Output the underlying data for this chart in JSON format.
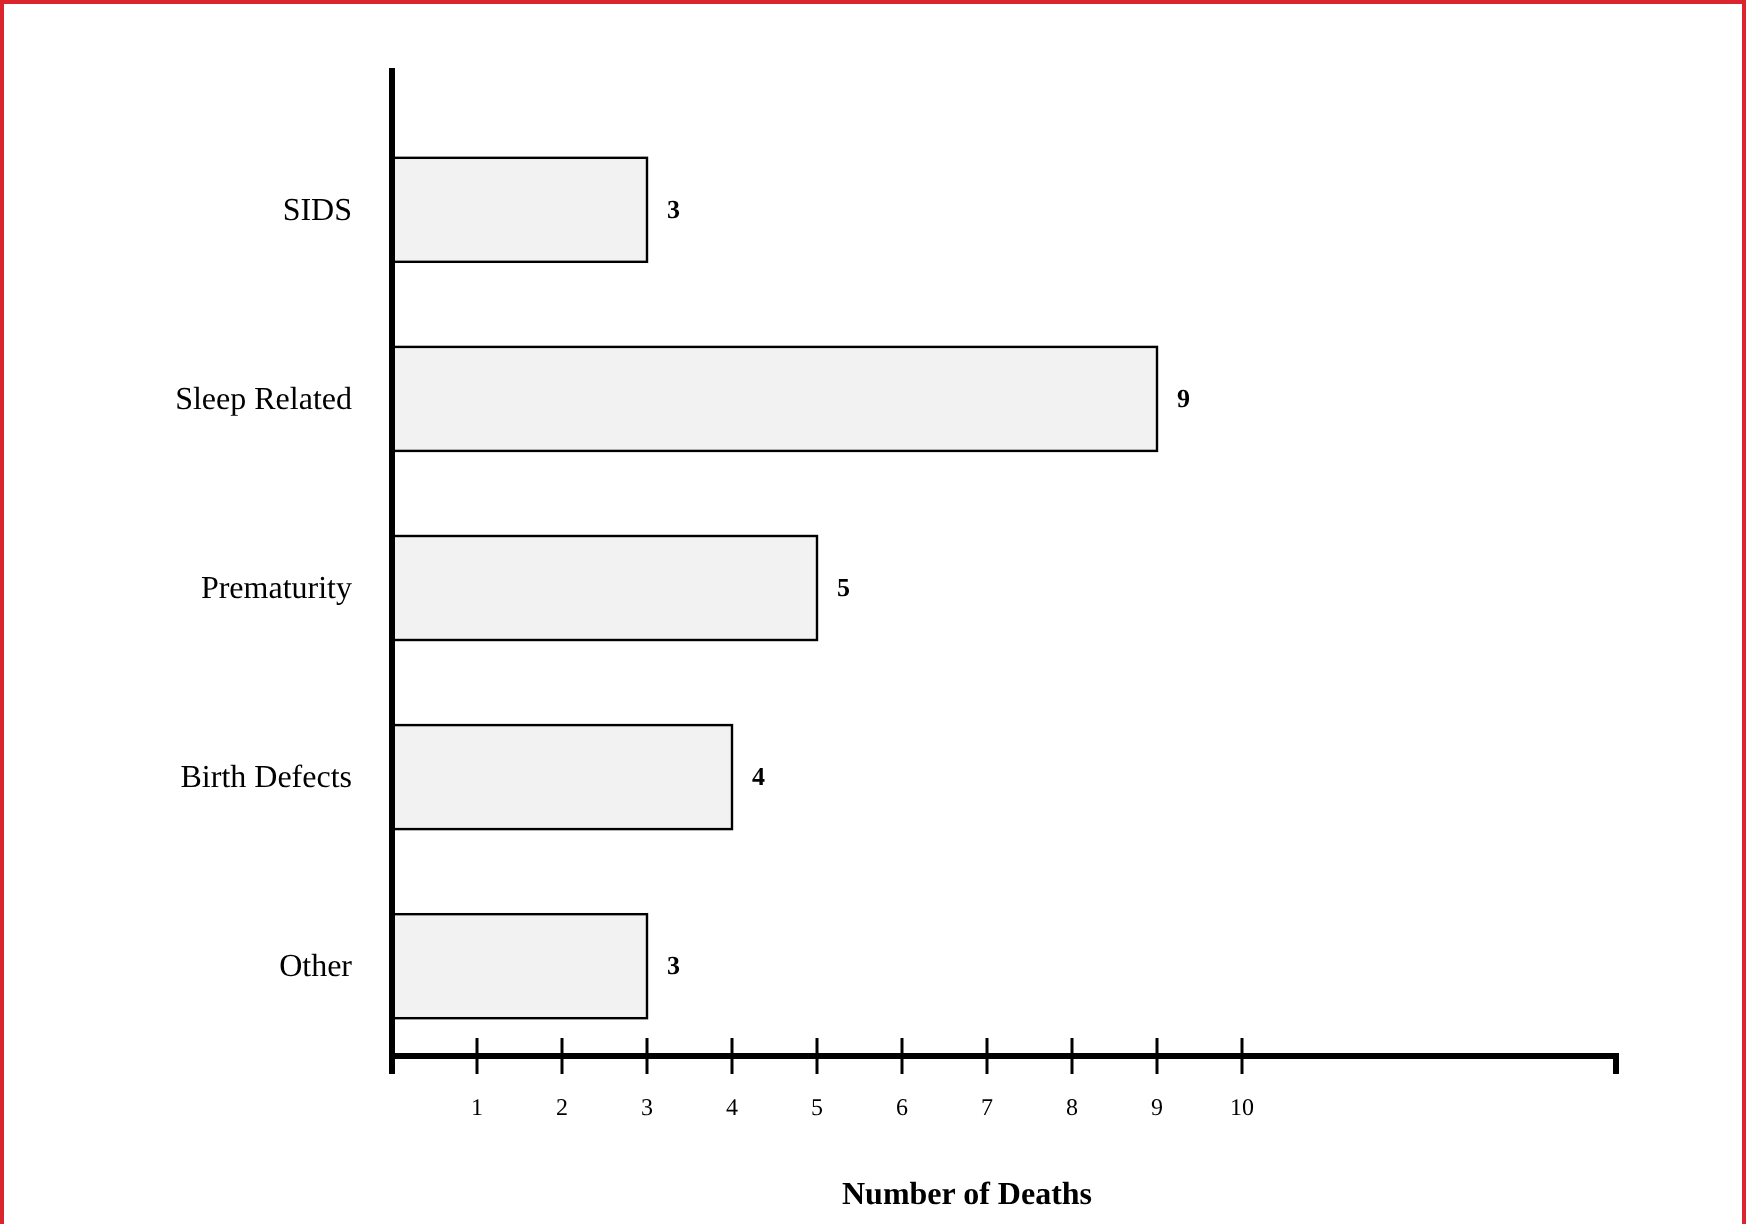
{
  "chart_data": {
    "type": "bar",
    "orientation": "horizontal",
    "categories": [
      "SIDS",
      "Sleep Related",
      "Prematurity",
      "Birth Defects",
      "Other"
    ],
    "values": [
      3,
      9,
      5,
      4,
      3
    ],
    "color": "#f2f2f2",
    "xlabel": "Number of Deaths",
    "xlim": [
      0,
      14.4
    ],
    "xticks": [
      1,
      2,
      3,
      4,
      5,
      6,
      7,
      8,
      9,
      10
    ],
    "data_labels": true,
    "grid": false
  }
}
